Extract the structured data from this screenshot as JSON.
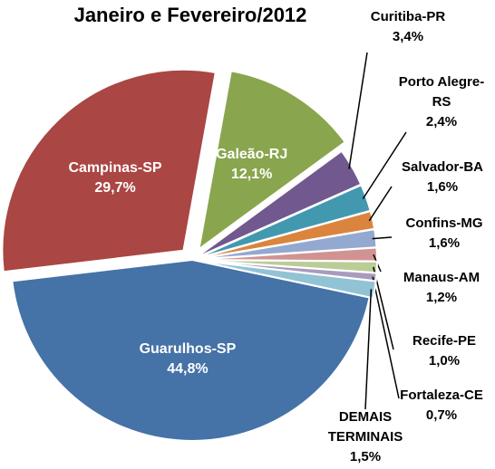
{
  "chart_data": {
    "type": "pie",
    "title": "Janeiro e Fevereiro/2012",
    "categories": [
      "Guarulhos-SP",
      "Campinas-SP",
      "Galeão-RJ",
      "Curitiba-PR",
      "Porto Alegre-RS",
      "Salvador-BA",
      "Confins-MG",
      "Manaus-AM",
      "Recife-PE",
      "Fortaleza-CE",
      "DEMAIS TERMINAIS"
    ],
    "values": [
      44.8,
      29.7,
      12.1,
      3.4,
      2.4,
      1.6,
      1.6,
      1.2,
      1.0,
      0.7,
      1.5
    ],
    "value_labels": [
      "44,8%",
      "29,7%",
      "12,1%",
      "3,4%",
      "2,4%",
      "1,6%",
      "1,6%",
      "1,2%",
      "1,0%",
      "0,7%",
      "1,5%"
    ],
    "colors": [
      "#4572a7",
      "#aa4643",
      "#89a54e",
      "#71588f",
      "#4198af",
      "#db843d",
      "#93a9cf",
      "#d19392",
      "#b9cd96",
      "#a99bbd",
      "#91c3d5"
    ]
  }
}
